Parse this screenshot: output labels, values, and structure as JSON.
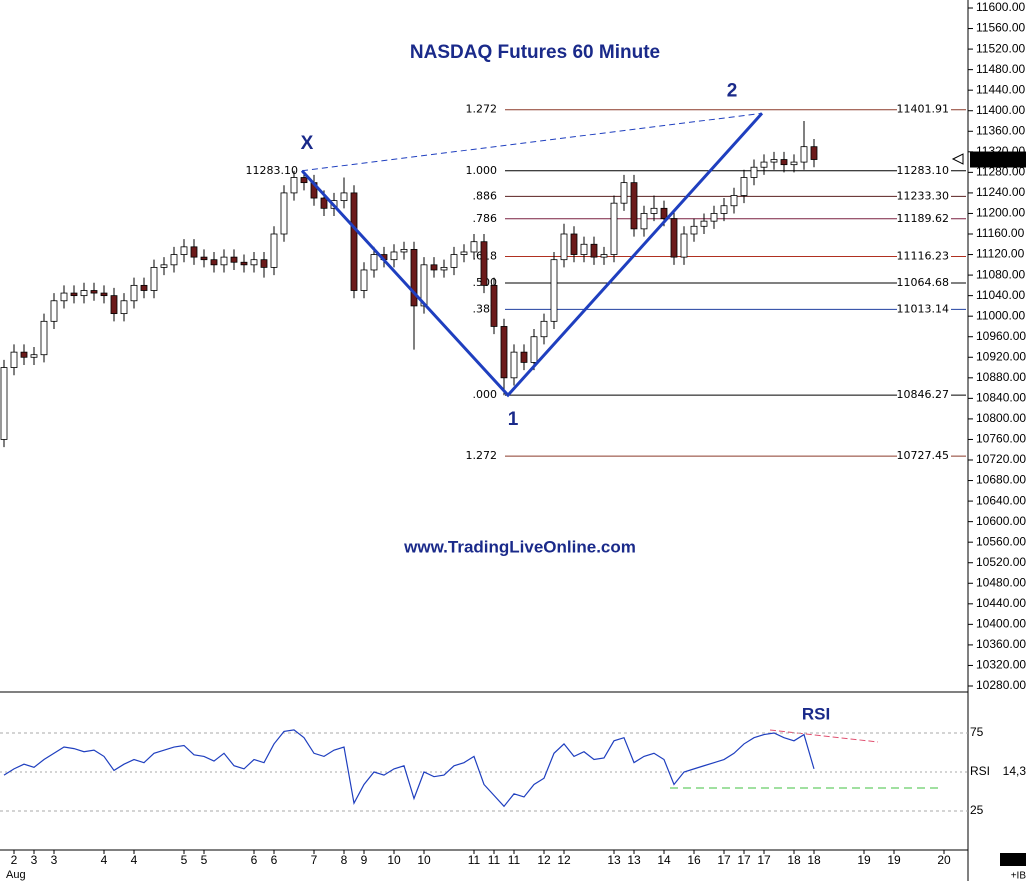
{
  "chart_data": [
    {
      "type": "candlestick",
      "title": "NASDAQ Futures 60 Minute",
      "watermark": "www.TradingLiveOnline.com",
      "month": "Aug",
      "corner_text": "+IB",
      "categories": [
        null,
        "2",
        null,
        "3",
        null,
        "3",
        null,
        null,
        null,
        null,
        "4",
        null,
        null,
        "4",
        null,
        null,
        null,
        null,
        "5",
        null,
        "5",
        null,
        null,
        null,
        null,
        "6",
        null,
        "6",
        null,
        null,
        null,
        "7",
        null,
        null,
        "8",
        null,
        "9",
        null,
        null,
        "10",
        null,
        null,
        "10",
        null,
        null,
        null,
        null,
        "11",
        null,
        "11",
        null,
        "11",
        null,
        null,
        "12",
        null,
        "12",
        null,
        null,
        null,
        null,
        "13",
        null,
        "13",
        null,
        null,
        "14",
        null,
        null,
        "16",
        null,
        null,
        "17",
        null,
        "17",
        null,
        "17",
        null,
        null,
        "18",
        null,
        "18",
        null,
        null,
        null,
        null,
        "19",
        null,
        null,
        "19",
        null,
        null,
        null,
        null,
        "20",
        null
      ],
      "open": [
        10760,
        10900,
        10930,
        10920,
        10925,
        10990,
        11030,
        11045,
        11040,
        11050,
        11045,
        11040,
        11005,
        11030,
        11060,
        11050,
        11095,
        11100,
        11120,
        11135,
        11115,
        11110,
        11100,
        11115,
        11105,
        11100,
        11110,
        11095,
        11160,
        11240,
        11270,
        11260,
        11230,
        11210,
        11225,
        11240,
        11050,
        11090,
        11120,
        11110,
        11125,
        11130,
        11020,
        11100,
        11090,
        11095,
        11120,
        11125,
        11145,
        11060,
        10980,
        10880,
        10930,
        10910,
        10960,
        10990,
        11110,
        11160,
        11120,
        11140,
        11115,
        11120,
        11220,
        11260,
        11170,
        11200,
        11210,
        11190,
        11115,
        11160,
        11175,
        11185,
        11200,
        11215,
        11235,
        11270,
        11290,
        11300,
        11305,
        11295,
        11300,
        11330,
        null,
        null,
        null,
        null,
        null,
        null,
        null,
        null,
        null,
        null,
        null,
        null,
        null,
        null
      ],
      "high": [
        10915,
        10945,
        10945,
        10940,
        11005,
        11045,
        11060,
        11060,
        11065,
        11065,
        11060,
        11055,
        11045,
        11075,
        11075,
        11110,
        11115,
        11135,
        11150,
        11150,
        11130,
        11125,
        11130,
        11130,
        11120,
        11125,
        11125,
        11175,
        11255,
        11283,
        11280,
        11275,
        11245,
        11240,
        11270,
        11255,
        11105,
        11135,
        11135,
        11140,
        11145,
        11145,
        11115,
        11115,
        11110,
        11135,
        11140,
        11160,
        11160,
        11075,
        10995,
        10945,
        10945,
        10975,
        11005,
        11125,
        11180,
        11175,
        11155,
        11155,
        11135,
        11235,
        11275,
        11275,
        11215,
        11235,
        11225,
        11205,
        11175,
        11190,
        11200,
        11215,
        11230,
        11250,
        11285,
        11305,
        11315,
        11320,
        11320,
        11315,
        11380,
        11345,
        null,
        null,
        null,
        null,
        null,
        null,
        null,
        null,
        null,
        null,
        null,
        null,
        null,
        null
      ],
      "low": [
        10745,
        10885,
        10905,
        10905,
        10910,
        10975,
        11015,
        11025,
        11025,
        11030,
        11025,
        10990,
        10990,
        11015,
        11035,
        11035,
        11080,
        11085,
        11105,
        11100,
        11095,
        11085,
        11085,
        11090,
        11085,
        11085,
        11075,
        11080,
        11145,
        11225,
        11245,
        11215,
        11195,
        11195,
        11210,
        11035,
        11035,
        11075,
        11095,
        11095,
        11110,
        10935,
        11005,
        11075,
        11075,
        11080,
        11105,
        11110,
        11045,
        10965,
        10846,
        10865,
        10895,
        10895,
        10945,
        10975,
        11095,
        11105,
        11105,
        11100,
        11100,
        11105,
        11205,
        11155,
        11155,
        11185,
        11175,
        11100,
        11100,
        11145,
        11160,
        11170,
        11185,
        11200,
        11220,
        11255,
        11275,
        11285,
        11280,
        11280,
        11285,
        11290,
        null,
        null,
        null,
        null,
        null,
        null,
        null,
        null,
        null,
        null,
        null,
        null,
        null,
        null
      ],
      "close": [
        10900,
        10930,
        10920,
        10925,
        10990,
        11030,
        11045,
        11040,
        11050,
        11045,
        11040,
        11005,
        11030,
        11060,
        11050,
        11095,
        11100,
        11120,
        11135,
        11115,
        11110,
        11100,
        11115,
        11105,
        11100,
        11110,
        11095,
        11160,
        11240,
        11270,
        11260,
        11230,
        11210,
        11225,
        11240,
        11050,
        11090,
        11120,
        11110,
        11125,
        11130,
        11020,
        11100,
        11090,
        11095,
        11120,
        11125,
        11145,
        11060,
        10980,
        10880,
        10930,
        10910,
        10960,
        10990,
        11110,
        11160,
        11120,
        11140,
        11115,
        11120,
        11220,
        11260,
        11170,
        11200,
        11210,
        11190,
        11115,
        11160,
        11175,
        11185,
        11200,
        11215,
        11235,
        11270,
        11290,
        11300,
        11305,
        11295,
        11300,
        11330,
        11305,
        null,
        null,
        null,
        null,
        null,
        null,
        null,
        null,
        null,
        null,
        null,
        null,
        null,
        null
      ],
      "up_color": "#ffffff",
      "down_color": "#6b1a1a",
      "ylim": [
        10280,
        11600
      ],
      "yticks": [
        {
          "value": 11600,
          "label": "11600.00"
        },
        {
          "value": 11560,
          "label": "11560.00"
        },
        {
          "value": 11520,
          "label": "11520.00"
        },
        {
          "value": 11480,
          "label": "11480.00"
        },
        {
          "value": 11440,
          "label": "11440.00"
        },
        {
          "value": 11400,
          "label": "11400.00"
        },
        {
          "value": 11360,
          "label": "11360.00"
        },
        {
          "value": 11320,
          "label": "11320.00"
        },
        {
          "value": 11280,
          "label": "11280.00"
        },
        {
          "value": 11240,
          "label": "11240.00"
        },
        {
          "value": 11200,
          "label": "11200.00"
        },
        {
          "value": 11160,
          "label": "11160.00"
        },
        {
          "value": 11120,
          "label": "11120.00"
        },
        {
          "value": 11080,
          "label": "11080.00"
        },
        {
          "value": 11040,
          "label": "11040.00"
        },
        {
          "value": 11000,
          "label": "11000.00"
        },
        {
          "value": 10960,
          "label": "10960.00"
        },
        {
          "value": 10920,
          "label": "10920.00"
        },
        {
          "value": 10880,
          "label": "10880.00"
        },
        {
          "value": 10840,
          "label": "10840.00"
        },
        {
          "value": 10800,
          "label": "10800.00"
        },
        {
          "value": 10760,
          "label": "10760.00"
        },
        {
          "value": 10720,
          "label": "10720.00"
        },
        {
          "value": 10680,
          "label": "10680.00"
        },
        {
          "value": 10640,
          "label": "10640.00"
        },
        {
          "value": 10600,
          "label": "10600.00"
        },
        {
          "value": 10560,
          "label": "10560.00"
        },
        {
          "value": 10520,
          "label": "10520.00"
        },
        {
          "value": 10480,
          "label": "10480.00"
        },
        {
          "value": 10440,
          "label": "10440.00"
        },
        {
          "value": 10400,
          "label": "10400.00"
        },
        {
          "value": 10360,
          "label": "10360.00"
        },
        {
          "value": 10320,
          "label": "10320.00"
        },
        {
          "value": 10280,
          "label": "10280.00"
        }
      ],
      "last_price": {
        "value": 11305,
        "label": "11305.00"
      },
      "fib_levels": [
        {
          "ratio": "1.272",
          "value": 11401.91,
          "label": "11401.91",
          "color": "#8b3a2a"
        },
        {
          "ratio": "1.000",
          "value": 11283.1,
          "label": "11283.10",
          "color": "#000000"
        },
        {
          "ratio": ".886",
          "value": 11233.3,
          "label": "11233.30",
          "color": "#5a2020"
        },
        {
          "ratio": ".786",
          "value": 11189.62,
          "label": "11189.62",
          "color": "#7a2040"
        },
        {
          "ratio": ".618",
          "value": 11116.23,
          "label": "11116.23",
          "color": "#b03020"
        },
        {
          "ratio": ".500",
          "value": 11064.68,
          "label": "11064.68",
          "color": "#000000"
        },
        {
          "ratio": ".382",
          "value": 11013.14,
          "label": "11013.14",
          "color": "#2040a0"
        },
        {
          "ratio": ".000",
          "value": 10846.27,
          "label": "10846.27",
          "color": "#000000"
        },
        {
          "ratio": "1.272",
          "value": 10727.45,
          "label": "10727.45",
          "color": "#8b3a2a"
        }
      ],
      "pattern_color": "#1f3fbf",
      "pattern": [
        {
          "name": "X",
          "x": 29.8,
          "value": 11283.1,
          "label": "11283.10"
        },
        {
          "name": "1",
          "x": 50.4,
          "value": 10846.27
        },
        {
          "name": "2",
          "x": 75.8,
          "value": 11395
        }
      ]
    },
    {
      "type": "line",
      "title": "RSI",
      "name": "RSI",
      "params": "14,3",
      "color": "#1f3fbf",
      "values": [
        48,
        52,
        55,
        53,
        58,
        62,
        66,
        65,
        63,
        64,
        60,
        51,
        55,
        58,
        56,
        62,
        64,
        66,
        67,
        61,
        60,
        57,
        62,
        54,
        52,
        58,
        56,
        68,
        76,
        77,
        72,
        62,
        60,
        64,
        66,
        30,
        42,
        50,
        48,
        52,
        54,
        33,
        50,
        47,
        48,
        54,
        56,
        60,
        42,
        35,
        28,
        36,
        34,
        42,
        46,
        62,
        68,
        60,
        63,
        58,
        59,
        70,
        72,
        56,
        60,
        62,
        58,
        42,
        50,
        52,
        54,
        56,
        58,
        62,
        68,
        72,
        74,
        75,
        72,
        70,
        74,
        52,
        null,
        null,
        null,
        null,
        null,
        null,
        null,
        null,
        null,
        null,
        null,
        null,
        null,
        null
      ],
      "ylim": [
        0,
        100
      ],
      "yticks": [
        75,
        25
      ],
      "midline": 50
    }
  ]
}
